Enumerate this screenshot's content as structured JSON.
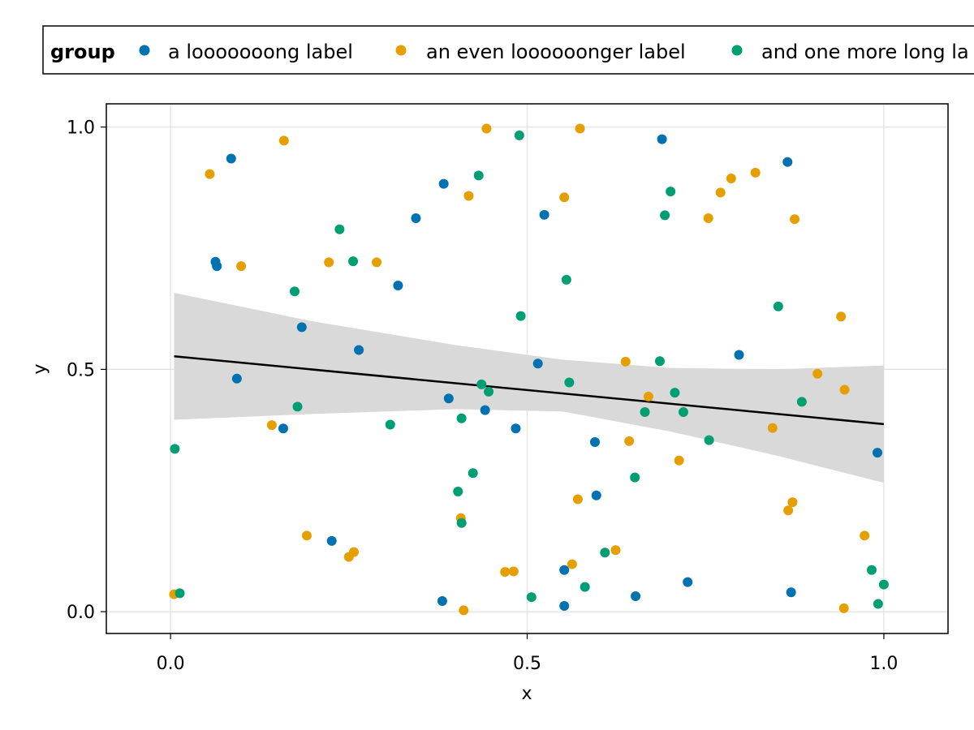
{
  "chart_data": {
    "type": "scatter",
    "xlabel": "x",
    "ylabel": "y",
    "xlim": [
      -0.09,
      1.09
    ],
    "ylim": [
      -0.045,
      1.048
    ],
    "xticks": [
      0.0,
      0.5,
      1.0
    ],
    "xtick_labels": [
      "0.0",
      "0.5",
      "1.0"
    ],
    "yticks": [
      0.0,
      0.5,
      1.0
    ],
    "ytick_labels": [
      "0.0",
      "0.5",
      "1.0"
    ],
    "grid": true,
    "legend": {
      "title": "group",
      "placement": "top",
      "entries": [
        "a looooooong label",
        "an even loooooonger label",
        "and one more long la"
      ]
    },
    "series": [
      {
        "name": "a looooooong label",
        "color": "#0072b2",
        "points": [
          [
            0.085,
            0.935
          ],
          [
            0.063,
            0.722
          ],
          [
            0.065,
            0.713
          ],
          [
            0.093,
            0.481
          ],
          [
            0.158,
            0.378
          ],
          [
            0.184,
            0.587
          ],
          [
            0.226,
            0.146
          ],
          [
            0.264,
            0.54
          ],
          [
            0.319,
            0.673
          ],
          [
            0.344,
            0.812
          ],
          [
            0.383,
            0.883
          ],
          [
            0.39,
            0.44
          ],
          [
            0.381,
            0.022
          ],
          [
            0.441,
            0.416
          ],
          [
            0.484,
            0.378
          ],
          [
            0.515,
            0.512
          ],
          [
            0.524,
            0.819
          ],
          [
            0.552,
            0.086
          ],
          [
            0.552,
            0.012
          ],
          [
            0.595,
            0.35
          ],
          [
            0.597,
            0.24
          ],
          [
            0.652,
            0.032
          ],
          [
            0.689,
            0.975
          ],
          [
            0.725,
            0.061
          ],
          [
            0.797,
            0.53
          ],
          [
            0.865,
            0.928
          ],
          [
            0.87,
            0.04
          ],
          [
            0.991,
            0.328
          ]
        ]
      },
      {
        "name": "an even loooooonger label",
        "color": "#e69f00",
        "points": [
          [
            0.005,
            0.036
          ],
          [
            0.055,
            0.903
          ],
          [
            0.099,
            0.713
          ],
          [
            0.142,
            0.385
          ],
          [
            0.159,
            0.972
          ],
          [
            0.191,
            0.157
          ],
          [
            0.222,
            0.721
          ],
          [
            0.25,
            0.113
          ],
          [
            0.257,
            0.123
          ],
          [
            0.289,
            0.721
          ],
          [
            0.407,
            0.193
          ],
          [
            0.411,
            0.003
          ],
          [
            0.418,
            0.858
          ],
          [
            0.443,
            0.997
          ],
          [
            0.469,
            0.082
          ],
          [
            0.481,
            0.083
          ],
          [
            0.552,
            0.855
          ],
          [
            0.563,
            0.098
          ],
          [
            0.571,
            0.232
          ],
          [
            0.574,
            0.997
          ],
          [
            0.638,
            0.516
          ],
          [
            0.643,
            0.352
          ],
          [
            0.624,
            0.127
          ],
          [
            0.67,
            0.444
          ],
          [
            0.713,
            0.312
          ],
          [
            0.754,
            0.812
          ],
          [
            0.771,
            0.865
          ],
          [
            0.786,
            0.894
          ],
          [
            0.82,
            0.906
          ],
          [
            0.844,
            0.379
          ],
          [
            0.866,
            0.209
          ],
          [
            0.872,
            0.226
          ],
          [
            0.875,
            0.81
          ],
          [
            0.907,
            0.491
          ],
          [
            0.94,
            0.609
          ],
          [
            0.945,
            0.458
          ],
          [
            0.944,
            0.007
          ],
          [
            0.973,
            0.157
          ]
        ]
      },
      {
        "name": "and one more long la",
        "color": "#009e73",
        "points": [
          [
            0.006,
            0.336
          ],
          [
            0.013,
            0.038
          ],
          [
            0.174,
            0.661
          ],
          [
            0.178,
            0.423
          ],
          [
            0.237,
            0.789
          ],
          [
            0.256,
            0.723
          ],
          [
            0.308,
            0.386
          ],
          [
            0.403,
            0.248
          ],
          [
            0.408,
            0.183
          ],
          [
            0.408,
            0.399
          ],
          [
            0.424,
            0.286
          ],
          [
            0.432,
            0.9
          ],
          [
            0.436,
            0.469
          ],
          [
            0.446,
            0.454
          ],
          [
            0.489,
            0.983
          ],
          [
            0.491,
            0.61
          ],
          [
            0.506,
            0.03
          ],
          [
            0.555,
            0.685
          ],
          [
            0.559,
            0.473
          ],
          [
            0.581,
            0.051
          ],
          [
            0.609,
            0.122
          ],
          [
            0.651,
            0.277
          ],
          [
            0.665,
            0.412
          ],
          [
            0.686,
            0.517
          ],
          [
            0.693,
            0.818
          ],
          [
            0.701,
            0.867
          ],
          [
            0.707,
            0.452
          ],
          [
            0.719,
            0.412
          ],
          [
            0.755,
            0.354
          ],
          [
            0.852,
            0.63
          ],
          [
            0.885,
            0.433
          ],
          [
            0.983,
            0.086
          ],
          [
            0.992,
            0.016
          ],
          [
            1.0,
            0.056
          ]
        ]
      }
    ],
    "regression": {
      "color": "#000000",
      "band_color": "#d9d9d9",
      "line": [
        [
          0.005,
          0.527
        ],
        [
          1.0,
          0.387
        ]
      ],
      "band_upper": [
        [
          0.005,
          0.658
        ],
        [
          0.2,
          0.599
        ],
        [
          0.4,
          0.55
        ],
        [
          0.55,
          0.52
        ],
        [
          0.7,
          0.503
        ],
        [
          0.85,
          0.5
        ],
        [
          1.0,
          0.508
        ]
      ],
      "band_lower": [
        [
          0.005,
          0.396
        ],
        [
          0.2,
          0.408
        ],
        [
          0.4,
          0.418
        ],
        [
          0.55,
          0.413
        ],
        [
          0.7,
          0.372
        ],
        [
          0.85,
          0.322
        ],
        [
          1.0,
          0.266
        ]
      ]
    }
  }
}
